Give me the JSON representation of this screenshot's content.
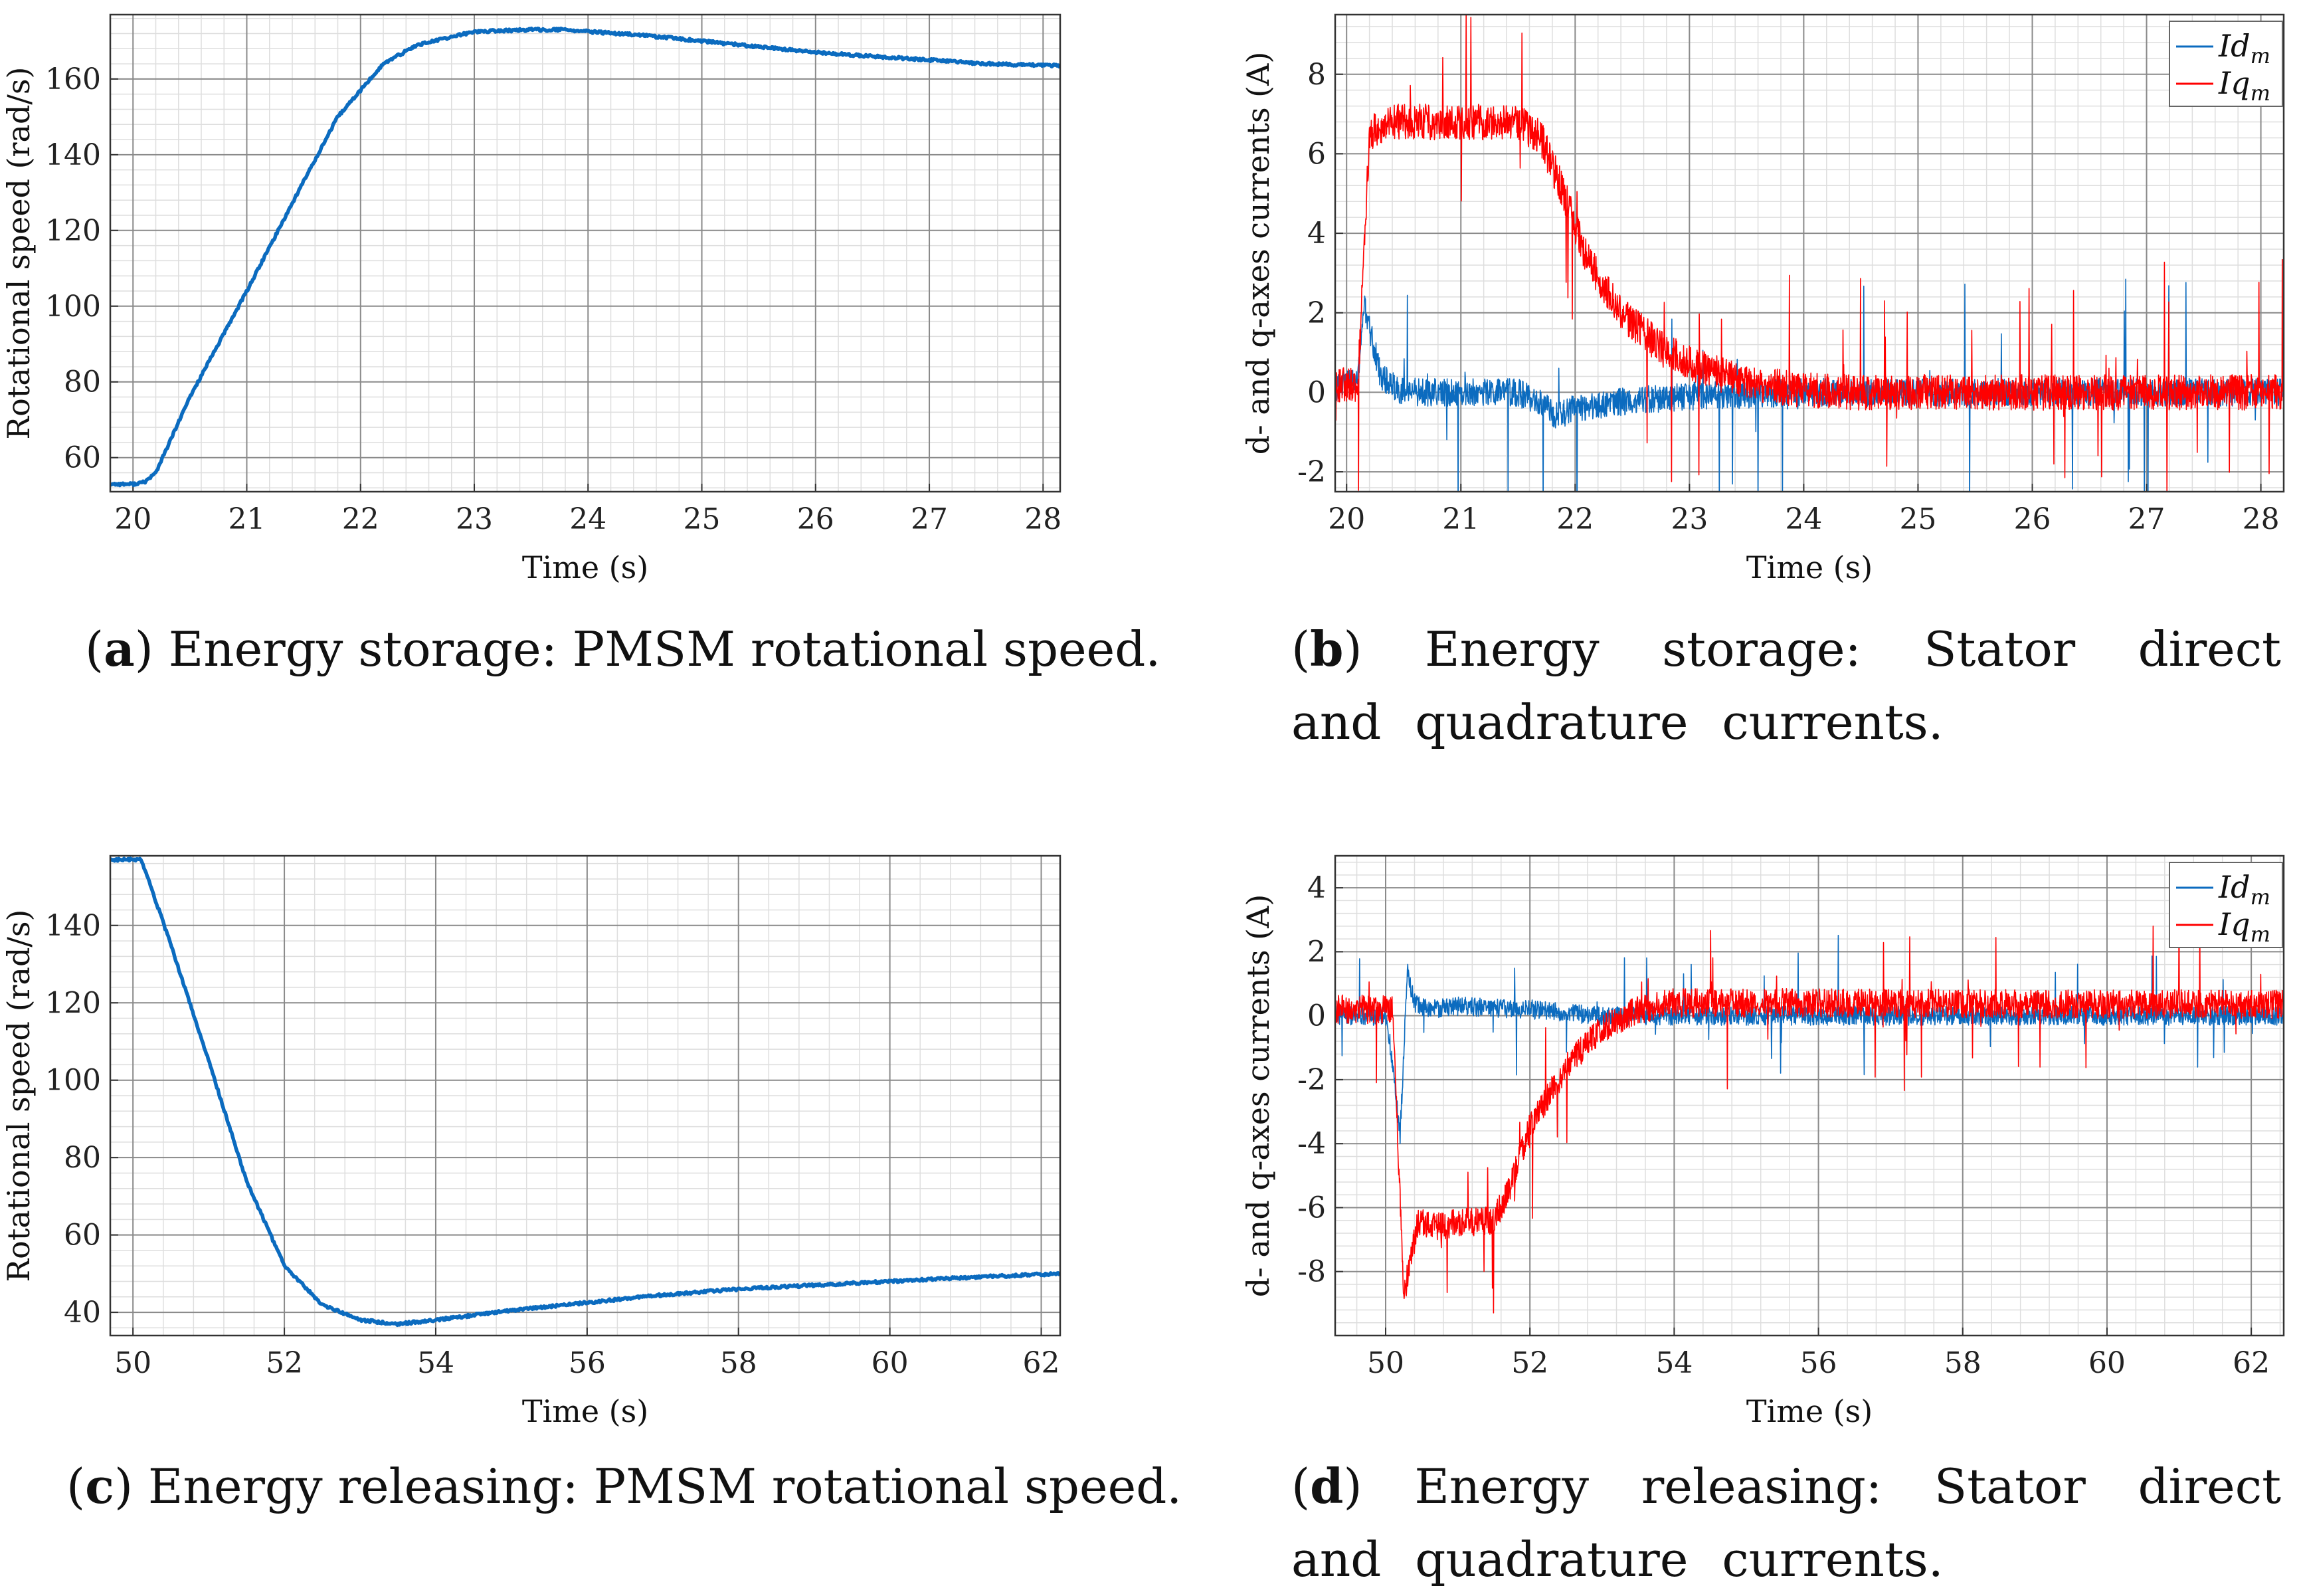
{
  "colors": {
    "blue": "#0b6bbf",
    "red": "#ff0000",
    "grid_major": "#8a8a8a",
    "grid_minor": "#dedede"
  },
  "chart_data": [
    {
      "id": "a",
      "type": "line",
      "caption": {
        "letter": "a",
        "open": "(",
        "close": ")",
        "text": " Energy storage: PMSM rotational speed."
      },
      "xlabel": "Time (s)",
      "ylabel": "Rotational speed (rad/s)",
      "xlim": [
        19.8,
        28.15
      ],
      "ylim": [
        51,
        177
      ],
      "xticks": [
        20,
        21,
        22,
        23,
        24,
        25,
        26,
        27,
        28
      ],
      "yticks": [
        60,
        80,
        100,
        120,
        140,
        160
      ],
      "legend": null,
      "series": [
        {
          "name": "speed",
          "color": "#0b6bbf",
          "x": [
            19.8,
            20.0,
            20.1,
            20.2,
            20.5,
            21.0,
            21.5,
            21.8,
            22.0,
            22.2,
            22.5,
            23.0,
            23.5,
            23.8,
            24.0,
            24.5,
            25.0,
            25.5,
            26.0,
            26.5,
            27.0,
            27.5,
            28.15
          ],
          "y": [
            53,
            53,
            53.5,
            56,
            76,
            104,
            133,
            150,
            157,
            164,
            169,
            172.5,
            173,
            173,
            172.5,
            171.5,
            170,
            168.5,
            167,
            166,
            165,
            164,
            163.5
          ]
        }
      ]
    },
    {
      "id": "b",
      "type": "line",
      "caption": {
        "letter": "b",
        "open": "(",
        "close": ")",
        "text": " Energy storage: Stator direct and quadrature currents."
      },
      "xlabel": "Time (s)",
      "ylabel": "d- and q-axes currents (A)",
      "xlim": [
        19.9,
        28.2
      ],
      "ylim": [
        -2.5,
        9.5
      ],
      "xticks": [
        20,
        21,
        22,
        23,
        24,
        25,
        26,
        27,
        28
      ],
      "yticks": [
        -2,
        0,
        2,
        4,
        6,
        8
      ],
      "legend": {
        "position": "top-right",
        "entries": [
          {
            "main": "Id",
            "sub": "m",
            "color": "#0b6bbf"
          },
          {
            "main": "Iq",
            "sub": "m",
            "color": "#ff0000"
          }
        ]
      },
      "series": [
        {
          "name": "Id_m",
          "color": "#0b6bbf",
          "noise": 0.35,
          "spike": 1.4,
          "x": [
            19.9,
            20.1,
            20.15,
            20.3,
            20.5,
            21.0,
            21.5,
            21.7,
            21.85,
            22.0,
            22.5,
            23.0,
            24.0,
            28.2
          ],
          "y": [
            0.1,
            0.3,
            2.2,
            0.4,
            0.0,
            0.0,
            0.0,
            -0.3,
            -0.6,
            -0.4,
            -0.2,
            -0.1,
            0.0,
            0.0
          ]
        },
        {
          "name": "Iq_m",
          "color": "#ff0000",
          "noise": 0.45,
          "spike": 1.5,
          "x": [
            19.9,
            20.1,
            20.2,
            20.4,
            21.0,
            21.5,
            21.7,
            21.9,
            22.1,
            22.4,
            22.8,
            23.2,
            23.6,
            24.0,
            24.5,
            28.2
          ],
          "y": [
            0.2,
            0.2,
            6.5,
            6.8,
            6.8,
            6.8,
            6.4,
            5.0,
            3.4,
            2.0,
            1.0,
            0.5,
            0.2,
            0.05,
            0.0,
            0.0
          ]
        }
      ]
    },
    {
      "id": "c",
      "type": "line",
      "caption": {
        "letter": "c",
        "open": "(",
        "close": ")",
        "text": " Energy releasing: PMSM rotational speed."
      },
      "xlabel": "Time (s)",
      "ylabel": "Rotational speed (rad/s)",
      "xlim": [
        49.7,
        62.25
      ],
      "ylim": [
        34,
        158
      ],
      "xticks": [
        50,
        52,
        54,
        56,
        58,
        60,
        62
      ],
      "yticks": [
        40,
        60,
        80,
        100,
        120,
        140
      ],
      "legend": null,
      "series": [
        {
          "name": "speed",
          "color": "#0b6bbf",
          "x": [
            49.7,
            50.1,
            50.2,
            50.5,
            51.0,
            51.5,
            52.0,
            52.5,
            53.0,
            53.5,
            54.0,
            55.0,
            56.0,
            57.0,
            58.0,
            59.0,
            60.0,
            61.0,
            62.25
          ],
          "y": [
            157,
            157,
            152,
            135,
            105,
            74,
            52,
            42,
            38,
            37,
            38,
            40.5,
            42.5,
            44.5,
            46,
            47,
            48,
            49,
            50
          ]
        }
      ]
    },
    {
      "id": "d",
      "type": "line",
      "caption": {
        "letter": "d",
        "open": "(",
        "close": ")",
        "text": " Energy releasing: Stator direct and quadrature currents."
      },
      "xlabel": "Time (s)",
      "ylabel": "d- and q-axes currents (A)",
      "xlim": [
        49.3,
        62.45
      ],
      "ylim": [
        -10,
        5
      ],
      "xticks": [
        50,
        52,
        54,
        56,
        58,
        60,
        62
      ],
      "yticks": [
        -8,
        -6,
        -4,
        -2,
        0,
        2,
        4
      ],
      "legend": {
        "position": "top-right",
        "entries": [
          {
            "main": "Id",
            "sub": "m",
            "color": "#0b6bbf"
          },
          {
            "main": "Iq",
            "sub": "m",
            "color": "#ff0000"
          }
        ]
      },
      "series": [
        {
          "name": "Id_m",
          "color": "#0b6bbf",
          "noise": 0.3,
          "spike": 1.1,
          "x": [
            49.3,
            50.0,
            50.1,
            50.2,
            50.3,
            50.4,
            50.6,
            51.0,
            52.0,
            53.0,
            62.45
          ],
          "y": [
            0.0,
            0.0,
            -1.5,
            -3.8,
            1.4,
            0.4,
            0.2,
            0.3,
            0.2,
            0.0,
            0.0
          ]
        },
        {
          "name": "Iq_m",
          "color": "#ff0000",
          "noise": 0.45,
          "spike": 1.3,
          "x": [
            49.3,
            50.1,
            50.25,
            50.45,
            50.6,
            51.0,
            51.5,
            51.7,
            52.0,
            52.5,
            53.0,
            53.5,
            54.0,
            56.0,
            62.45
          ],
          "y": [
            0.2,
            0.2,
            -8.8,
            -6.4,
            -6.6,
            -6.5,
            -6.4,
            -5.5,
            -3.5,
            -1.6,
            -0.4,
            0.2,
            0.4,
            0.4,
            0.35
          ]
        }
      ]
    }
  ]
}
